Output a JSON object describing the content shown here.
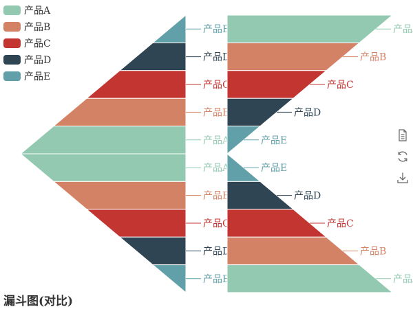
{
  "chart_data": {
    "type": "funnel",
    "title": "漏斗图(对比)",
    "legend": {
      "position": "top-left",
      "items": [
        "产品A",
        "产品B",
        "产品C",
        "产品D",
        "产品E"
      ]
    },
    "colors": {
      "产品A": "#93c9b0",
      "产品B": "#d48265",
      "产品C": "#c23531",
      "产品D": "#2f4554",
      "产品E": "#61a0a8"
    },
    "funnels": [
      {
        "id": "left-top",
        "sort": "ascending",
        "align": "right",
        "label_side": "right",
        "data": [
          {
            "name": "产品E",
            "value": 20
          },
          {
            "name": "产品D",
            "value": 40
          },
          {
            "name": "产品C",
            "value": 60
          },
          {
            "name": "产品B",
            "value": 80
          },
          {
            "name": "产品A",
            "value": 100
          }
        ]
      },
      {
        "id": "left-bottom",
        "sort": "descending",
        "align": "right",
        "label_side": "right",
        "data": [
          {
            "name": "产品A",
            "value": 100
          },
          {
            "name": "产品B",
            "value": 80
          },
          {
            "name": "产品C",
            "value": 60
          },
          {
            "name": "产品D",
            "value": 40
          },
          {
            "name": "产品E",
            "value": 20
          }
        ]
      },
      {
        "id": "right-top",
        "sort": "descending",
        "align": "left",
        "label_side": "right",
        "data": [
          {
            "name": "产品A",
            "value": 100
          },
          {
            "name": "产品B",
            "value": 80
          },
          {
            "name": "产品C",
            "value": 60
          },
          {
            "name": "产品D",
            "value": 40
          },
          {
            "name": "产品E",
            "value": 20
          }
        ]
      },
      {
        "id": "right-bottom",
        "sort": "ascending",
        "align": "left",
        "label_side": "right",
        "data": [
          {
            "name": "产品E",
            "value": 20
          },
          {
            "name": "产品D",
            "value": 40
          },
          {
            "name": "产品C",
            "value": 60
          },
          {
            "name": "产品B",
            "value": 80
          },
          {
            "name": "产品A",
            "value": 100
          }
        ]
      }
    ]
  },
  "toolbox": [
    {
      "name": "data-view-icon"
    },
    {
      "name": "restore-icon"
    },
    {
      "name": "save-image-icon"
    }
  ]
}
